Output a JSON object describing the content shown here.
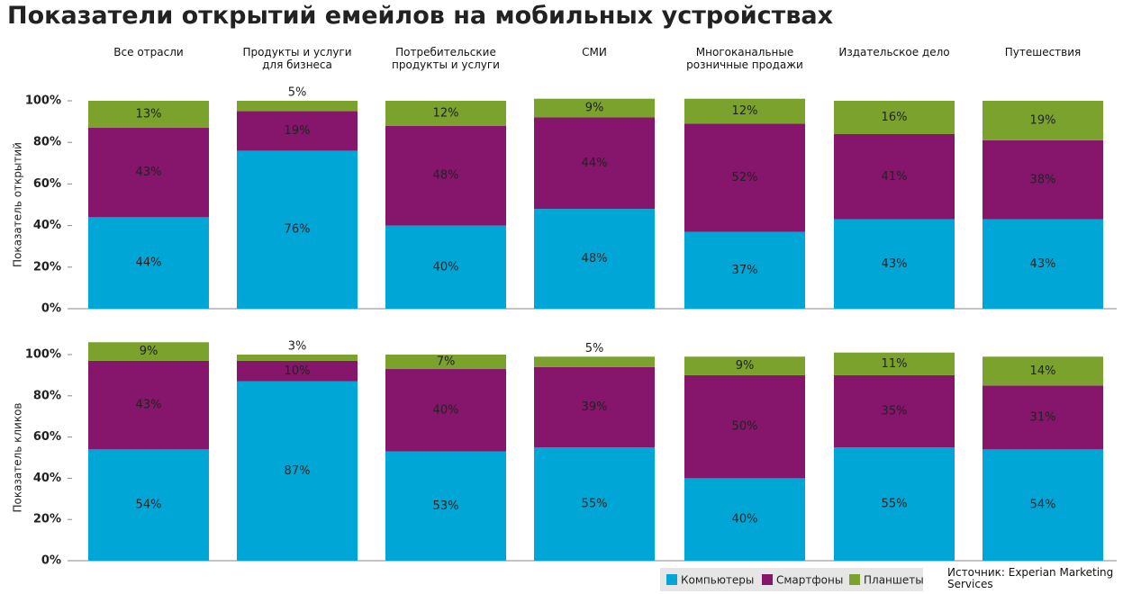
{
  "chart_data": [
    {
      "type": "stacked-bar",
      "title": "Показатели открытий емейлов на мобильных устройствах",
      "y_label": "Показатель открытий",
      "categories": [
        "Все отрасли",
        "Продукты и услуги\nдля бизнеса",
        "Потребительские\nпродукты и услуги",
        "СМИ",
        "Многоканальные\nрозничные продажи",
        "Издательское дело",
        "Путешествия"
      ],
      "ylim": [
        0,
        100
      ],
      "yticks": [
        {
          "value": 0,
          "label": "0%"
        },
        {
          "value": 20,
          "label": "20%"
        },
        {
          "value": 40,
          "label": "40%"
        },
        {
          "value": 60,
          "label": "60%"
        },
        {
          "value": 80,
          "label": "80%"
        },
        {
          "value": 100,
          "label": "100%"
        }
      ],
      "series": [
        {
          "color": "#00a6d6",
          "values": [
            44,
            76,
            40,
            48,
            37,
            43,
            43
          ],
          "value_labels": [
            "44%",
            "76%",
            "40%",
            "48%",
            "37%",
            "43%",
            "43%"
          ]
        },
        {
          "color": "#85166b",
          "values": [
            43,
            19,
            48,
            44,
            52,
            41,
            38
          ],
          "value_labels": [
            "43%",
            "19%",
            "48%",
            "44%",
            "52%",
            "41%",
            "38%"
          ]
        },
        {
          "color": "#7aa22c",
          "values": [
            13,
            5,
            12,
            9,
            12,
            16,
            19
          ],
          "value_labels": [
            "13%",
            "5%",
            "12%",
            "9%",
            "12%",
            "16%",
            "19%"
          ]
        }
      ]
    },
    {
      "type": "stacked-bar",
      "y_label": "Показатель кликов",
      "ylim": [
        0,
        100
      ],
      "yticks": [
        {
          "value": 0,
          "label": "0%"
        },
        {
          "value": 20,
          "label": "20%"
        },
        {
          "value": 40,
          "label": "40%"
        },
        {
          "value": 60,
          "label": "60%"
        },
        {
          "value": 80,
          "label": "80%"
        },
        {
          "value": 100,
          "label": "100%"
        }
      ],
      "series": [
        {
          "name": "Компьютеры",
          "color": "#00a6d6",
          "values": [
            54,
            87,
            53,
            55,
            40,
            55,
            54
          ],
          "value_labels": [
            "54%",
            "87%",
            "53%",
            "55%",
            "40%",
            "55%",
            "54%"
          ]
        },
        {
          "name": "Смартфоны",
          "color": "#85166b",
          "values": [
            43,
            10,
            40,
            39,
            50,
            35,
            31
          ],
          "value_labels": [
            "43%",
            "10%",
            "40%",
            "39%",
            "50%",
            "35%",
            "31%"
          ]
        },
        {
          "name": "Планшеты",
          "color": "#7aa22c",
          "values": [
            9,
            3,
            7,
            5,
            9,
            11,
            14
          ],
          "value_labels": [
            "9%",
            "3%",
            "7%",
            "5%",
            "9%",
            "11%",
            "14%"
          ]
        }
      ]
    }
  ],
  "source": "Источник: Experian Marketing Services"
}
